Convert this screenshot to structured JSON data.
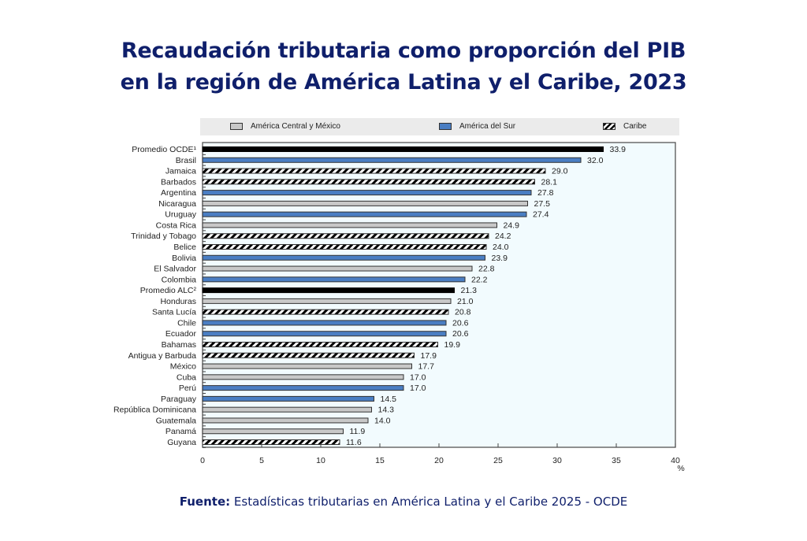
{
  "title": {
    "line1": "Recaudación tributaria como proporción del PIB",
    "line2": "en la región de América Latina y el Caribe, 2023"
  },
  "source": {
    "label": "Fuente:",
    "text": "Estadísticas tributarias en América Latina y el Caribe 2025 - OCDE"
  },
  "colors": {
    "title": "#0f1f6b",
    "central": "#c8c8c8",
    "sur": "#4a7ec3",
    "average": "#000000",
    "plot_bg": "#f2fbfe",
    "legend_bg": "#ebebeb"
  },
  "chart_data": {
    "type": "bar",
    "orientation": "horizontal",
    "title": "Recaudación tributaria como proporción del PIB en la región de América Latina y el Caribe, 2023",
    "xlabel": "%",
    "ylabel": "",
    "xlim": [
      0,
      40
    ],
    "xticks": [
      0,
      5,
      10,
      15,
      20,
      25,
      30,
      35,
      40
    ],
    "x_unit_label": "%",
    "grid": false,
    "legend": {
      "position": "top",
      "entries": [
        {
          "key": "central",
          "label": "América Central y México"
        },
        {
          "key": "sur",
          "label": "América del Sur"
        },
        {
          "key": "caribe",
          "label": "Caribe"
        }
      ]
    },
    "categories": [
      "Promedio OCDE¹",
      "Brasil",
      "Jamaica",
      "Barbados",
      "Argentina",
      "Nicaragua",
      "Uruguay",
      "Costa Rica",
      "Trinidad y Tobago",
      "Belice",
      "Bolivia",
      "El Salvador",
      "Colombia",
      "Promedio ALC²",
      "Honduras",
      "Santa Lucía",
      "Chile",
      "Ecuador",
      "Bahamas",
      "Antigua y Barbuda",
      "México",
      "Cuba",
      "Perú",
      "Paraguay",
      "República Dominicana",
      "Guatemala",
      "Panamá",
      "Guyana"
    ],
    "values": [
      33.9,
      32.0,
      29.0,
      28.1,
      27.8,
      27.5,
      27.4,
      24.9,
      24.2,
      24.0,
      23.9,
      22.8,
      22.2,
      21.3,
      21.0,
      20.8,
      20.6,
      20.6,
      19.9,
      17.9,
      17.7,
      17.0,
      17.0,
      14.5,
      14.3,
      14.0,
      11.9,
      11.6
    ],
    "value_labels": [
      "33.9",
      "32.0",
      "29.0",
      "28.1",
      "27.8",
      "27.5",
      "27.4",
      "24.9",
      "24.2",
      "24.0",
      "23.9",
      "22.8",
      "22.2",
      "21.3",
      "21.0",
      "20.8",
      "20.6",
      "20.6",
      "19.9",
      "17.9",
      "17.7",
      "17.0",
      "17.0",
      "14.5",
      "14.3",
      "14.0",
      "11.9",
      "11.6"
    ],
    "groups": [
      "average",
      "sur",
      "caribe",
      "caribe",
      "sur",
      "central",
      "sur",
      "central",
      "caribe",
      "caribe",
      "sur",
      "central",
      "sur",
      "average",
      "central",
      "caribe",
      "sur",
      "sur",
      "caribe",
      "caribe",
      "central",
      "central",
      "sur",
      "sur",
      "central",
      "central",
      "central",
      "caribe"
    ]
  }
}
